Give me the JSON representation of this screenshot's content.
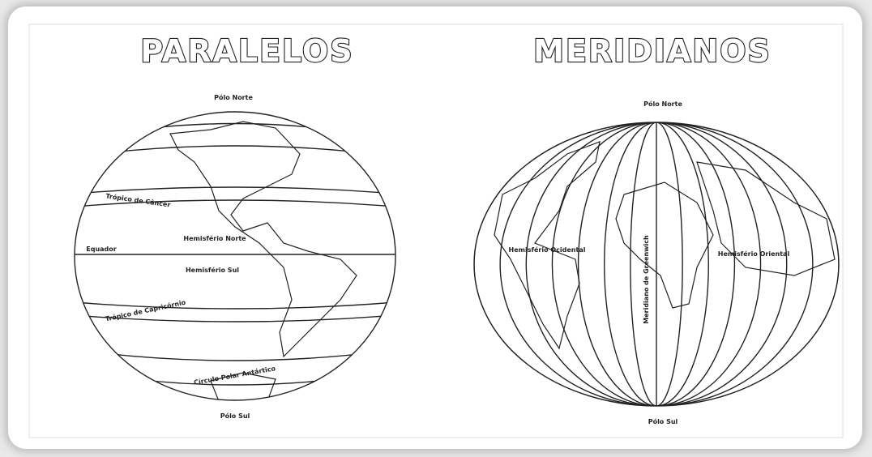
{
  "panels": [
    {
      "title": "PARALELOS",
      "labels": [
        "Pólo Norte",
        "Trópico de Câncer",
        "Equador",
        "Hemisfério Norte",
        "Hemisfério Sul",
        "Trópico de Capricórnio",
        "Círculo Polar Antártico",
        "Pólo Sul"
      ]
    },
    {
      "title": "MERIDIANOS",
      "labels": [
        "Pólo Norte",
        "Hemisfério Ocidental",
        "Meridiano de Greenwich",
        "Hemisfério Oriental",
        "Pólo Sul"
      ]
    }
  ]
}
